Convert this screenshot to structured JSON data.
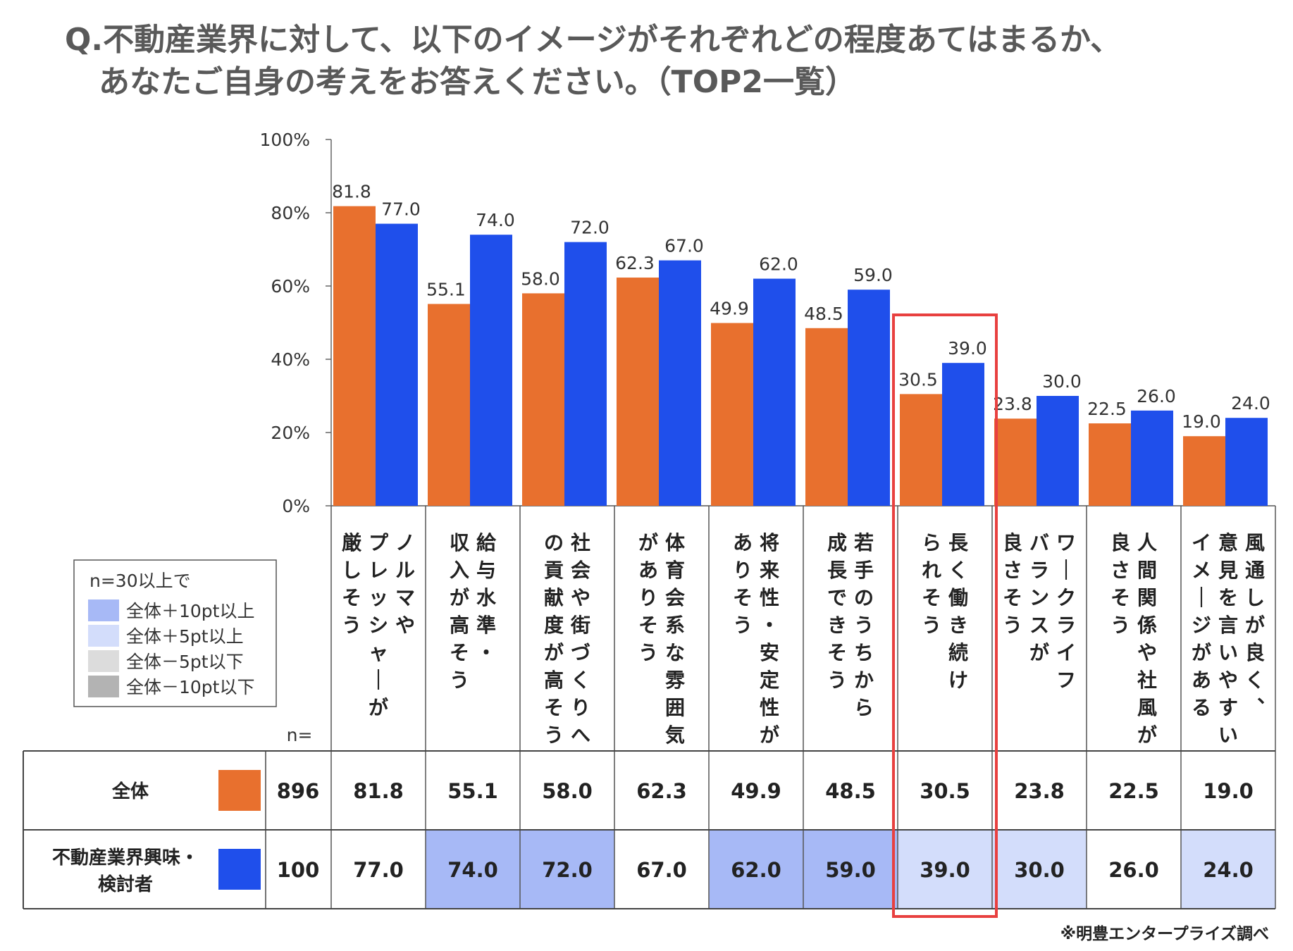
{
  "title": {
    "line1": "Q.不動産業界に対して、以下のイメージがそれぞれどの程度あてはまるか、",
    "line2": "あなたご自身の考えをお答えください。（TOP2一覧）"
  },
  "chart_data": {
    "type": "bar",
    "ylim": [
      0,
      100
    ],
    "yticks": [
      "0%",
      "20%",
      "40%",
      "60%",
      "80%",
      "100%"
    ],
    "categories": [
      "ノルマやプレッシャーが厳しそう",
      "給与水準・収入が高そう",
      "社会や街づくりへの貢献度が高そう",
      "体育会系な雰囲気がありそう",
      "将来性・安定性がありそう",
      "若手のうちから成長できそう",
      "長く働き続けられそう",
      "ワークライフバランスが良さそう",
      "人間関係や社風が良さそう",
      "風通しが良く、意見を言いやすいイメージがある"
    ],
    "category_columns": [
      [
        "ノルマや",
        "プレッシャーが",
        "厳しそう"
      ],
      [
        "給与水準・",
        "収入が高そう"
      ],
      [
        "社会や街づくりへ",
        "の貢献度が高そう"
      ],
      [
        "体育会系な雰囲気",
        "がありそう"
      ],
      [
        "将来性・安定性が",
        "ありそう"
      ],
      [
        "若手のうちから",
        "成長できそう"
      ],
      [
        "長く働き続け",
        "られそう"
      ],
      [
        "ワークライフ",
        "バランスが",
        "良さそう"
      ],
      [
        "人間関係や社風が",
        "良さそう"
      ],
      [
        "風通しが良く、",
        "意見を言いやすい",
        "イメージがある"
      ]
    ],
    "series": [
      {
        "name": "全体",
        "n": "896",
        "color": "#E8702E",
        "values": [
          81.8,
          55.1,
          58.0,
          62.3,
          49.9,
          48.5,
          30.5,
          23.8,
          22.5,
          19.0
        ]
      },
      {
        "name": "不動産業界興味・検討者",
        "name_lines": [
          "不動産業界興味・",
          "検討者"
        ],
        "n": "100",
        "color": "#1F4FEB",
        "values": [
          77.0,
          74.0,
          72.0,
          67.0,
          62.0,
          59.0,
          39.0,
          30.0,
          26.0,
          24.0
        ]
      }
    ],
    "value_labels": [
      [
        "81.8",
        "55.1",
        "58.0",
        "62.3",
        "49.9",
        "48.5",
        "30.5",
        "23.8",
        "22.5",
        "19.0"
      ],
      [
        "77.0",
        "74.0",
        "72.0",
        "67.0",
        "62.0",
        "59.0",
        "39.0",
        "30.0",
        "26.0",
        "24.0"
      ]
    ],
    "n_header": "n=",
    "highlight_category_index": 6,
    "highlight_color": "#E8403F",
    "legend": {
      "title": "n=30以上で",
      "items": [
        {
          "label": "全体＋10pt以上",
          "color": "#A7B9F6"
        },
        {
          "label": "全体＋5pt以上",
          "color": "#D3DDFB"
        },
        {
          "label": "全体－5pt以下",
          "color": "#DCDCDC"
        },
        {
          "label": "全体－10pt以下",
          "color": "#B3B3B3"
        }
      ]
    }
  },
  "footnote": "※明豊エンタープライズ調べ"
}
